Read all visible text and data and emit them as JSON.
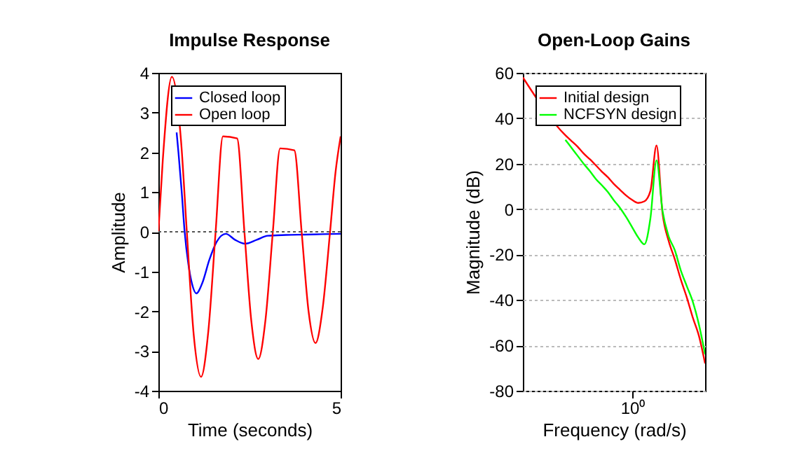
{
  "chart_data": [
    {
      "type": "line",
      "title": "Impulse Response",
      "xlabel": "Time (seconds)",
      "ylabel": "Amplitude",
      "xlim": [
        0,
        5
      ],
      "xticks": [
        0,
        5
      ],
      "ylim": [
        -4,
        4
      ],
      "yticks": [
        -4,
        -3,
        -2,
        -1,
        0,
        1,
        2,
        3,
        4
      ],
      "grid": false,
      "legend": "top left",
      "line_style": "solid",
      "ref_lines": [
        {
          "axis": "y",
          "value": 0,
          "color": "#555555",
          "line_style": "dotted"
        }
      ],
      "series": [
        {
          "name": "Closed loop",
          "color": "#0000ff",
          "x": [
            0.5,
            0.55,
            0.64,
            0.72,
            0.82,
            0.92,
            1.04,
            1.2,
            1.4,
            1.6,
            1.85,
            2.1,
            2.38,
            2.7,
            3.0,
            3.5,
            4.0,
            4.5,
            5.0
          ],
          "values": [
            2.5,
            2.0,
            1.0,
            0,
            -0.8,
            -1.3,
            -1.55,
            -1.3,
            -0.7,
            -0.25,
            -0.05,
            -0.2,
            -0.3,
            -0.2,
            -0.1,
            -0.08,
            -0.07,
            -0.06,
            -0.05
          ]
        },
        {
          "name": "Open loop",
          "color": "#ff0000",
          "x": [
            0,
            0.12,
            0.37,
            0.62,
            0.78,
            0.97,
            1.17,
            1.37,
            1.57,
            1.77,
            2.16,
            2.36,
            2.55,
            2.74,
            2.94,
            3.14,
            3.34,
            3.73,
            3.93,
            4.12,
            4.31,
            4.51,
            4.71,
            4.86,
            5.0
          ],
          "values": [
            0,
            1.8,
            3.9,
            2.3,
            0,
            -2.6,
            -3.65,
            -2.5,
            0,
            2.4,
            2.35,
            0,
            -2.25,
            -3.2,
            -2.2,
            0,
            2.1,
            2.05,
            0,
            -2.0,
            -2.8,
            -1.9,
            0,
            1.5,
            2.4
          ]
        }
      ]
    },
    {
      "type": "line",
      "title": "Open-Loop Gains",
      "xlabel": "Frequency (rad/s)",
      "ylabel": "Magnitude (dB)",
      "ylim": [
        -80,
        60
      ],
      "yticks": [
        -80,
        -60,
        -40,
        -20,
        0,
        20,
        40,
        60
      ],
      "grid": "y",
      "legend": "top left",
      "line_style": "solid",
      "categories": [
        null,
        null,
        null,
        null,
        null,
        null,
        null,
        null,
        null,
        null,
        null,
        null,
        null,
        null,
        null,
        null,
        null,
        null,
        "10⁰",
        null,
        null,
        null,
        null,
        null,
        null,
        null,
        null,
        null,
        null,
        null,
        null
      ],
      "series": [
        {
          "name": "Initial design",
          "color": "#ff0000",
          "values": [
            58,
            null,
            null,
            null,
            null,
            null,
            null,
            32.5,
            30,
            27.5,
            24.5,
            22,
            19.3,
            16.5,
            14,
            11,
            8.5,
            6,
            4,
            2.7,
            3.4,
            8,
            28,
            -2,
            -14,
            -22,
            -31,
            -39,
            -48,
            -56,
            -68
          ]
        },
        {
          "name": "NCFSYN design",
          "color": "#00ff00",
          "values": [
            null,
            null,
            null,
            null,
            null,
            null,
            null,
            30.5,
            27,
            23.5,
            20,
            16.8,
            13.3,
            10.5,
            7.5,
            3.8,
            0.5,
            -3.5,
            -8,
            -12.5,
            -15.5,
            -4,
            21.5,
            -1,
            -12,
            -18,
            -27,
            -34,
            -41,
            -51,
            -64
          ]
        }
      ]
    }
  ]
}
